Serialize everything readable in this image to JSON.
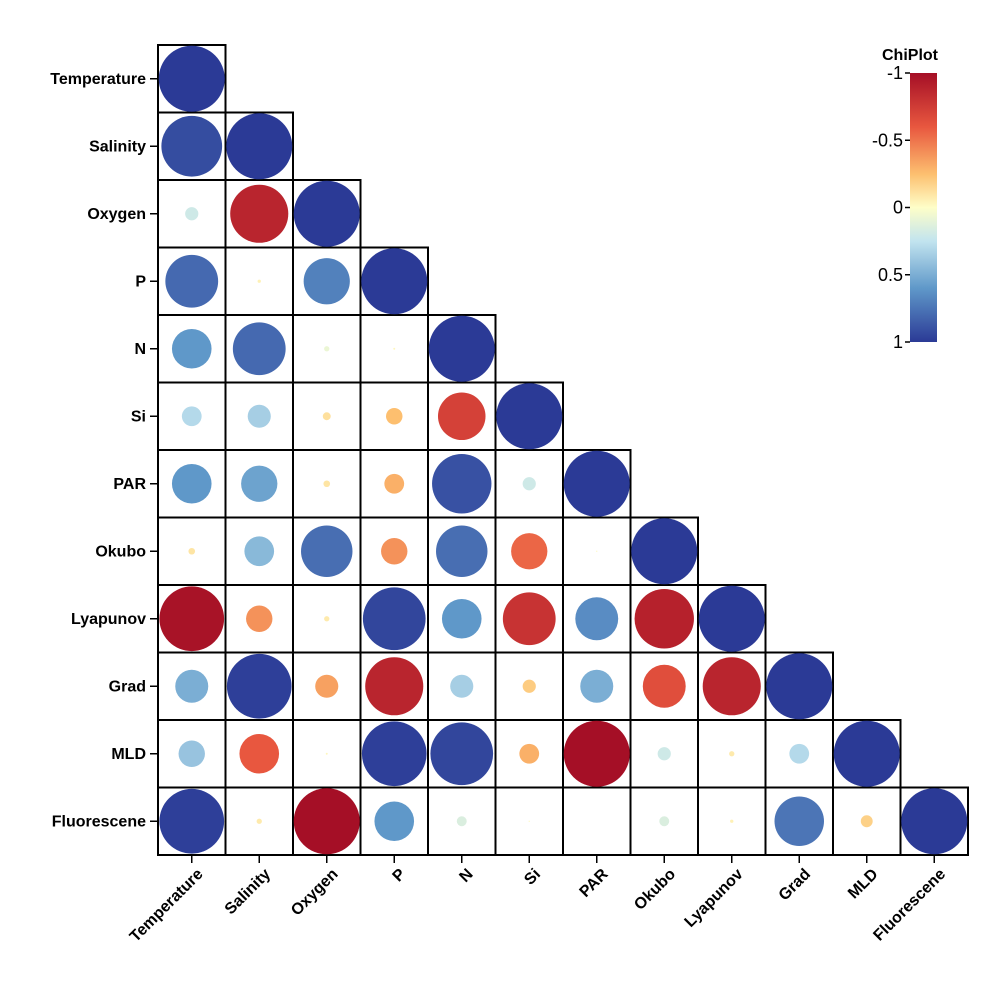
{
  "chart_data": {
    "type": "correlation-matrix",
    "layout": "lower-triangle",
    "variables": [
      "Temperature",
      "Salinity",
      "Oxygen",
      "P",
      "N",
      "Si",
      "PAR",
      "Okubo",
      "Lyapunov",
      "Grad",
      "MLD",
      "Fluorescene"
    ],
    "matrix": [
      [
        1.0
      ],
      [
        0.92,
        1.0
      ],
      [
        0.2,
        -0.88,
        1.0
      ],
      [
        0.8,
        -0.05,
        0.7,
        1.0
      ],
      [
        0.6,
        0.8,
        0.08,
        -0.03,
        1.0
      ],
      [
        0.3,
        0.35,
        -0.12,
        -0.25,
        -0.72,
        1.0
      ],
      [
        0.6,
        0.55,
        -0.1,
        -0.3,
        0.9,
        0.2,
        1.0
      ],
      [
        -0.1,
        0.45,
        0.78,
        -0.4,
        0.78,
        -0.55,
        -0.02,
        1.0
      ],
      [
        -0.98,
        -0.4,
        -0.08,
        0.95,
        0.6,
        -0.8,
        0.65,
        -0.9,
        1.0
      ],
      [
        0.5,
        0.98,
        -0.35,
        -0.88,
        0.35,
        -0.2,
        0.5,
        -0.65,
        -0.88,
        1.0
      ],
      [
        0.4,
        -0.6,
        -0.03,
        0.98,
        0.95,
        -0.3,
        -1.0,
        0.2,
        -0.08,
        0.3,
        1.0
      ],
      [
        0.98,
        -0.08,
        -1.0,
        0.6,
        0.15,
        -0.02,
        0.0,
        0.15,
        -0.05,
        0.75,
        -0.18,
        1.0
      ]
    ],
    "colorbar": {
      "title": "ChiPlot",
      "ticks": [
        -1,
        -0.5,
        0,
        0.5,
        1
      ],
      "tick_labels": [
        "-1",
        "-0.5",
        "0",
        "0.5",
        "1"
      ]
    },
    "colors": {
      "strong_negative": "#a50f26",
      "mid_negative": "#e8573f",
      "weak_negative": "#fdbf6f",
      "zero": "#fefec8",
      "weak_positive": "#c2e4ef",
      "mid_positive": "#5f98c9",
      "strong_positive": "#2b3a96",
      "grid_line": "#000000"
    }
  }
}
